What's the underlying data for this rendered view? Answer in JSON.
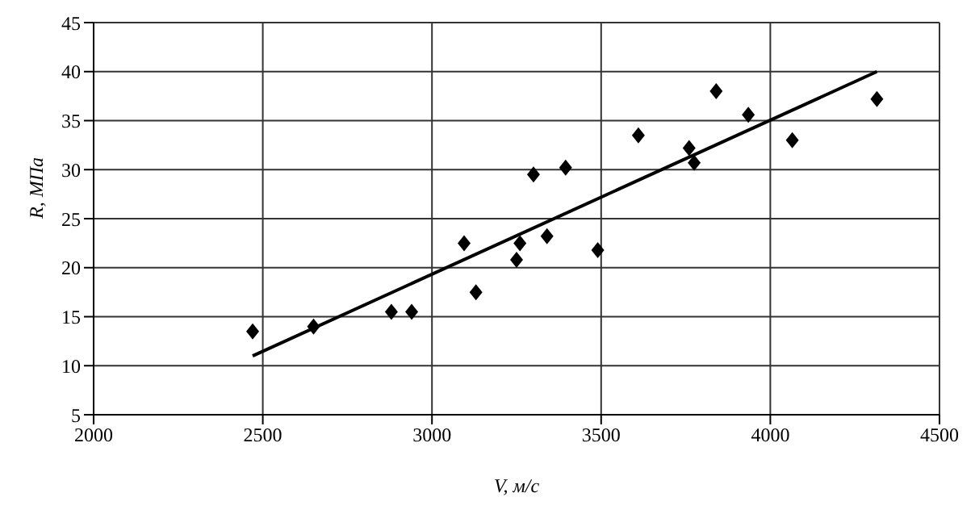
{
  "chart_data": {
    "type": "scatter",
    "xlabel": "V, м/с",
    "ylabel": "R, МПа",
    "xlim": [
      2000,
      4500
    ],
    "xticks": [
      2000,
      2500,
      3000,
      3500,
      4000,
      4500
    ],
    "ylim": [
      5,
      45
    ],
    "yticks": [
      5,
      10,
      15,
      20,
      25,
      30,
      35,
      40,
      45
    ],
    "grid": true,
    "series": [
      {
        "color": "#000000",
        "marker": "diamond",
        "x": [
          2470,
          2650,
          2880,
          2940,
          3095,
          3130,
          3250,
          3260,
          3300,
          3340,
          3395,
          3490,
          3610,
          3760,
          3775,
          3840,
          3935,
          4065,
          4315
        ],
        "values": [
          13.5,
          14,
          15.5,
          15.5,
          22.5,
          17.5,
          20.8,
          22.5,
          29.5,
          23.2,
          30.2,
          21.8,
          33.5,
          32.2,
          30.7,
          38,
          35.6,
          33,
          37.2
        ]
      },
      {
        "type": "line",
        "color": "#000000",
        "marker": "none",
        "x": [
          2470,
          4315
        ],
        "values": [
          11,
          40
        ]
      }
    ]
  }
}
